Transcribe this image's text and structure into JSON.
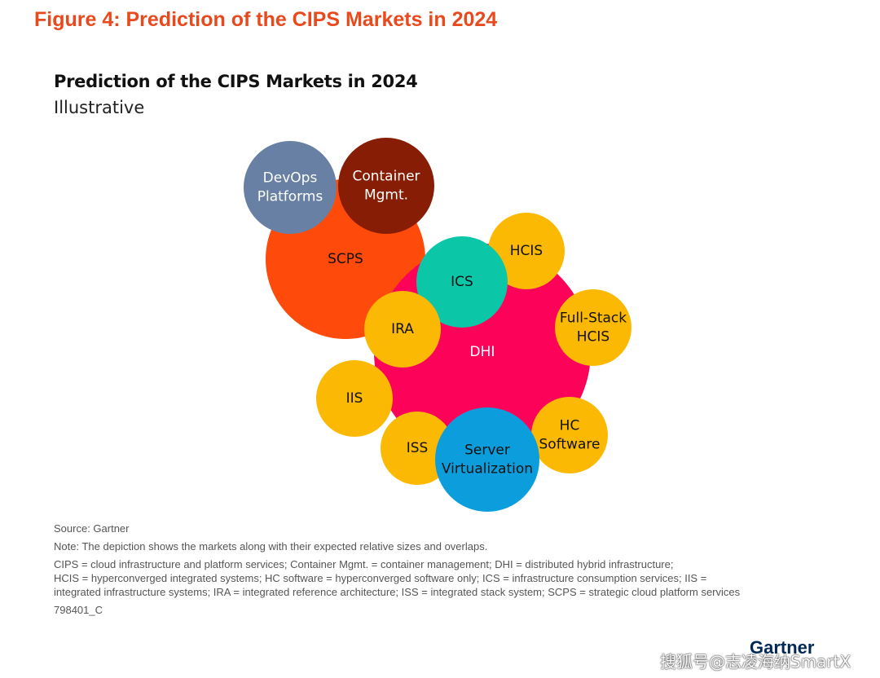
{
  "figure_title": "Figure 4: Prediction of the CIPS Markets in 2024",
  "chart": {
    "title": "Prediction of the CIPS Markets in 2024",
    "subtitle": "Illustrative"
  },
  "bubbles": [
    {
      "id": "scps",
      "lines": [
        "SCPS"
      ],
      "color": "#fe4a0b",
      "text_color": "#111111"
    },
    {
      "id": "dhi",
      "lines": [
        "DHI"
      ],
      "color": "#fc0359",
      "text_color": "#ffffff"
    },
    {
      "id": "devops",
      "lines": [
        "DevOps",
        "Platforms"
      ],
      "color": "#6780a4",
      "text_color": "#ffffff"
    },
    {
      "id": "container",
      "lines": [
        "Container",
        "Mgmt."
      ],
      "color": "#861d04",
      "text_color": "#ffffff"
    },
    {
      "id": "hcis",
      "lines": [
        "HCIS"
      ],
      "color": "#fcb904",
      "text_color": "#111111"
    },
    {
      "id": "ics",
      "lines": [
        "ICS"
      ],
      "color": "#0cc6a8",
      "text_color": "#111111"
    },
    {
      "id": "fullstack",
      "lines": [
        "Full-Stack",
        "HCIS"
      ],
      "color": "#fcb904",
      "text_color": "#111111"
    },
    {
      "id": "ira",
      "lines": [
        "IRA"
      ],
      "color": "#fcb904",
      "text_color": "#111111"
    },
    {
      "id": "iis",
      "lines": [
        "IIS"
      ],
      "color": "#fcb904",
      "text_color": "#111111"
    },
    {
      "id": "iss",
      "lines": [
        "ISS"
      ],
      "color": "#fcb904",
      "text_color": "#111111"
    },
    {
      "id": "hcsoft",
      "lines": [
        "HC",
        "Software"
      ],
      "color": "#fcb904",
      "text_color": "#111111"
    },
    {
      "id": "servervirt",
      "lines": [
        "Server",
        "Virtualization"
      ],
      "color": "#0c9ddc",
      "text_color": "#111111"
    }
  ],
  "notes": {
    "source": "Source: Gartner",
    "note": "Note: The depiction shows the markets along with their expected relative sizes and overlaps.",
    "abbrev_line1": "CIPS = cloud infrastructure and platform services; Container Mgmt. = container management; DHI = distributed hybrid infrastructure;",
    "abbrev_line2": "HCIS = hyperconverged integrated systems; HC software = hyperconverged software only; ICS = infrastructure consumption services; IIS =",
    "abbrev_line3": "integrated infrastructure systems; IRA = integrated reference architecture; ISS = integrated stack system; SCPS = strategic cloud platform services",
    "doc_id": "798401_C"
  },
  "logo": "Gartner",
  "watermark": "搜狐号@志凌海纳SmartX"
}
